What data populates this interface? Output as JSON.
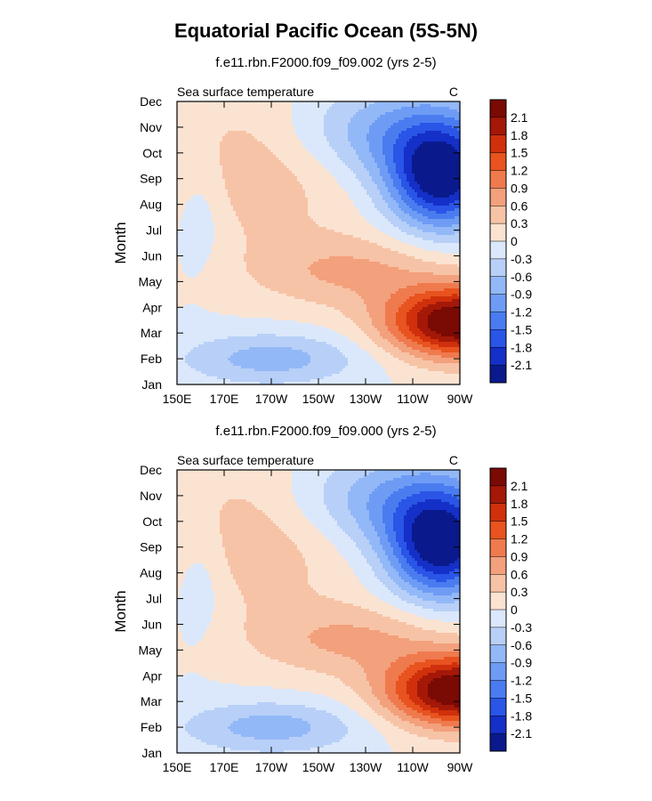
{
  "title": "Equatorial Pacific Ocean (5S-5N)",
  "colors": {
    "palette": [
      "#0a1a8c",
      "#1430c8",
      "#2a55e6",
      "#4a7cf0",
      "#6e9cf5",
      "#93b8f7",
      "#b8d0f8",
      "#dbe8fb",
      "#fbe3d2",
      "#f7c3a6",
      "#f3a07c",
      "#ef7a4e",
      "#e8531f",
      "#d0300c",
      "#a41808",
      "#7a0a04"
    ]
  },
  "chart_data": [
    {
      "type": "heatmap",
      "subtitle": "f.e11.rbn.F2000.f09_f09.002 (yrs 2-5)",
      "left_label": "Sea surface temperature",
      "right_label": "C",
      "ylabel": "Month",
      "xlabel": "",
      "x_ticks": [
        "150E",
        "170E",
        "170W",
        "150W",
        "130W",
        "110W",
        "90W"
      ],
      "x_values": [
        150,
        170,
        190,
        210,
        230,
        250,
        270
      ],
      "xlim": [
        150,
        270
      ],
      "y_ticks": [
        "Jan",
        "Feb",
        "Mar",
        "Apr",
        "May",
        "Jun",
        "Jul",
        "Aug",
        "Sep",
        "Oct",
        "Nov",
        "Dec"
      ],
      "ylim": [
        1,
        12
      ],
      "colorbar_labels": [
        "2.1",
        "1.8",
        "1.5",
        "1.2",
        "0.9",
        "0.6",
        "0.3",
        "0",
        "-0.3",
        "-0.6",
        "-0.9",
        "-1.2",
        "-1.5",
        "-1.8",
        "-2.1"
      ],
      "levels": [
        -2.1,
        -1.8,
        -1.5,
        -1.2,
        -0.9,
        -0.6,
        -0.3,
        0,
        0.3,
        0.6,
        0.9,
        1.2,
        1.5,
        1.8,
        2.1
      ]
    },
    {
      "type": "heatmap",
      "subtitle": "f.e11.rbn.F2000.f09_f09.000 (yrs 2-5)",
      "left_label": "Sea surface temperature",
      "right_label": "C",
      "ylabel": "Month",
      "xlabel": "",
      "x_ticks": [
        "150E",
        "170E",
        "170W",
        "150W",
        "130W",
        "110W",
        "90W"
      ],
      "x_values": [
        150,
        170,
        190,
        210,
        230,
        250,
        270
      ],
      "xlim": [
        150,
        270
      ],
      "y_ticks": [
        "Jan",
        "Feb",
        "Mar",
        "Apr",
        "May",
        "Jun",
        "Jul",
        "Aug",
        "Sep",
        "Oct",
        "Nov",
        "Dec"
      ],
      "ylim": [
        1,
        12
      ],
      "colorbar_labels": [
        "2.1",
        "1.8",
        "1.5",
        "1.2",
        "0.9",
        "0.6",
        "0.3",
        "0",
        "-0.3",
        "-0.6",
        "-0.9",
        "-1.2",
        "-1.5",
        "-1.8",
        "-2.1"
      ],
      "levels": [
        -2.1,
        -1.8,
        -1.5,
        -1.2,
        -0.9,
        -0.6,
        -0.3,
        0,
        0.3,
        0.6,
        0.9,
        1.2,
        1.5,
        1.8,
        2.1
      ]
    }
  ]
}
